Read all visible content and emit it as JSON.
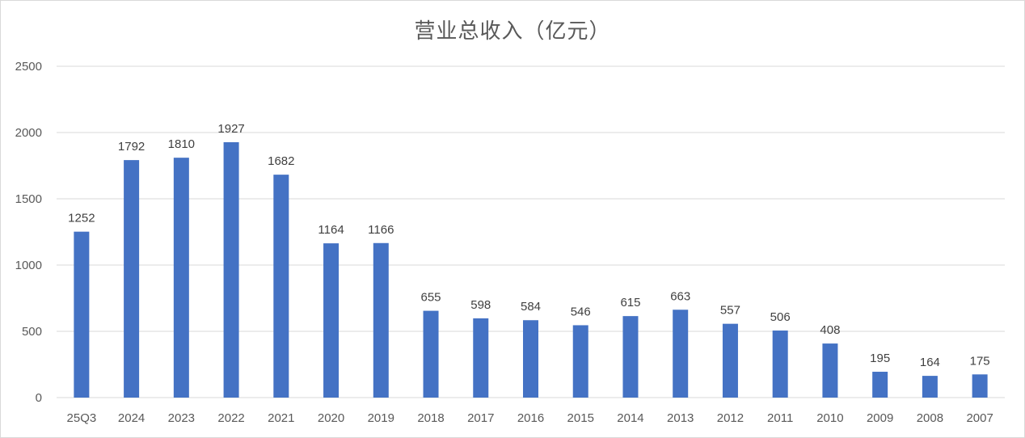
{
  "chart_data": {
    "type": "bar",
    "title": "营业总收入（亿元）",
    "xlabel": "",
    "ylabel": "",
    "categories": [
      "25Q3",
      "2024",
      "2023",
      "2022",
      "2021",
      "2020",
      "2019",
      "2018",
      "2017",
      "2016",
      "2015",
      "2014",
      "2013",
      "2012",
      "2011",
      "2010",
      "2009",
      "2008",
      "2007"
    ],
    "values": [
      1252,
      1792,
      1810,
      1927,
      1682,
      1164,
      1166,
      655,
      598,
      584,
      546,
      615,
      663,
      557,
      506,
      408,
      195,
      164,
      175
    ],
    "ylim": [
      0,
      2500
    ],
    "yticks": [
      0,
      500,
      1000,
      1500,
      2000,
      2500
    ],
    "grid": true,
    "legend": "none",
    "data_labels": true,
    "colors": {
      "bar": "#4472c4",
      "grid": "#d9d9d9",
      "text": "#595959"
    }
  }
}
